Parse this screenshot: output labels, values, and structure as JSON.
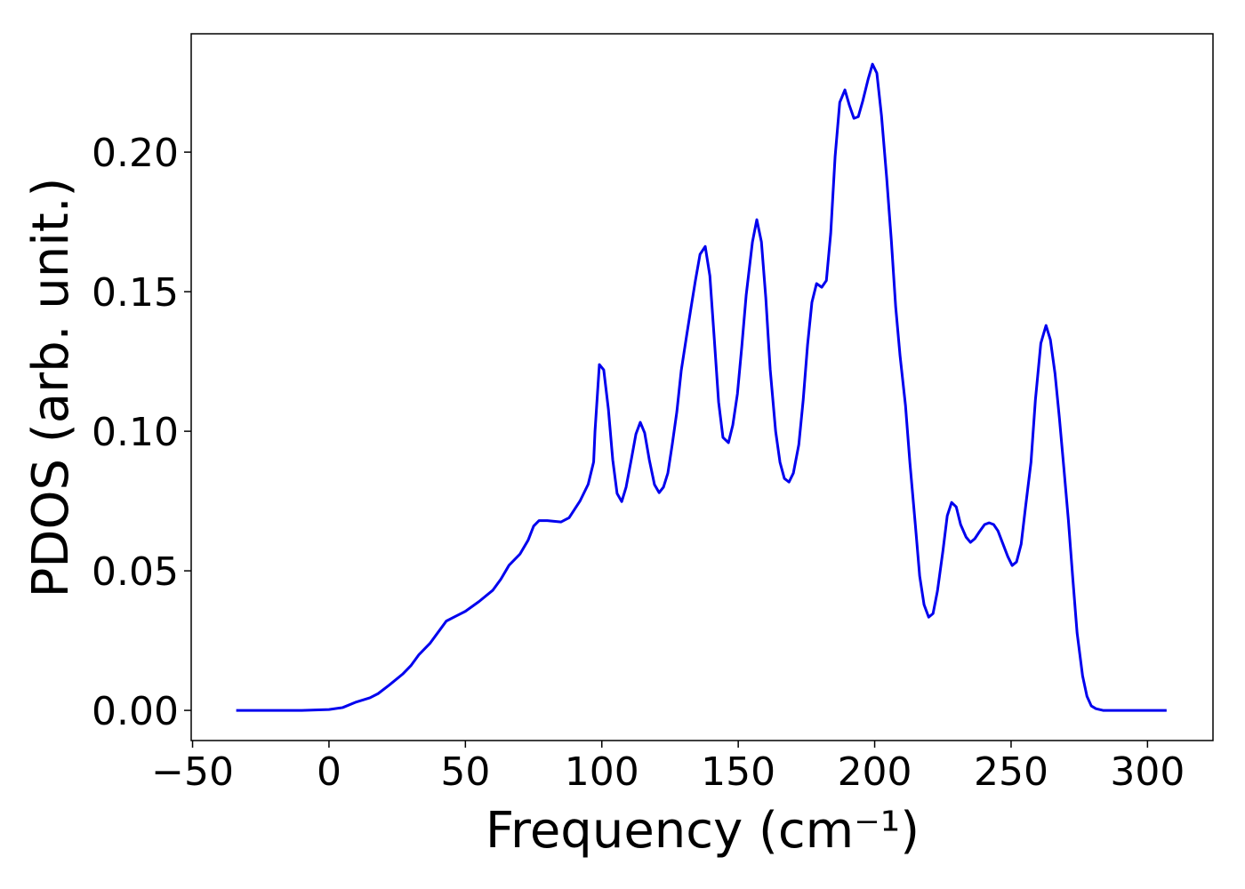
{
  "chart_data": {
    "type": "line",
    "xlabel": "Frequency (cm⁻¹)",
    "ylabel": "PDOS (arb. unit.)",
    "xlim": [
      -50.5,
      324
    ],
    "ylim": [
      -0.0108,
      0.2424
    ],
    "xticks": [
      {
        "value": -50,
        "label": "−50"
      },
      0,
      50,
      100,
      150,
      200,
      250,
      300
    ],
    "yticks": [
      {
        "value": 0,
        "label": "0.00"
      },
      {
        "value": 0.05,
        "label": "0.05"
      },
      {
        "value": 0.1,
        "label": "0.10"
      },
      {
        "value": 0.15,
        "label": "0.15"
      },
      {
        "value": 0.2,
        "label": "0.20"
      }
    ],
    "series": [
      {
        "color": "#0000ee",
        "x": [
          -34,
          -10,
          0,
          5,
          10,
          15,
          18,
          22,
          27,
          30,
          33,
          37,
          40,
          43,
          47,
          50,
          55,
          60,
          63,
          66,
          70,
          73,
          75,
          77,
          80,
          85,
          88,
          92,
          95,
          97,
          97.5,
          99.1,
          100.7,
          102.4,
          104,
          105.6,
          107.3,
          108.9,
          110.9,
          112.5,
          114.1,
          115.7,
          117.4,
          119.3,
          121,
          122.6,
          124.2,
          125.8,
          127.5,
          129.1,
          131.1,
          132.7,
          134.3,
          136,
          137.9,
          139.6,
          141.2,
          142.8,
          144.4,
          146.4,
          148,
          149.7,
          151.3,
          152.9,
          155.2,
          156.8,
          158.5,
          160.1,
          161.7,
          163.7,
          165.3,
          166.9,
          168.6,
          170.2,
          172.2,
          173.8,
          175.4,
          177,
          178.7,
          180.6,
          182.3,
          183.9,
          185.5,
          187.2,
          189.1,
          190.7,
          192.4,
          194,
          195.6,
          197.6,
          199.2,
          200.8,
          202.5,
          204.4,
          206.1,
          207.7,
          209.3,
          211.3,
          212.9,
          214.9,
          216.5,
          218.1,
          219.8,
          221.4,
          223,
          225,
          226.6,
          228.2,
          229.9,
          231.5,
          233.5,
          235.1,
          236.7,
          238.4,
          240.3,
          242,
          243.6,
          245.2,
          246.8,
          248.8,
          250.4,
          252,
          253.7,
          255.3,
          257.3,
          258.9,
          260.9,
          262.8,
          264.4,
          266.1,
          267.7,
          269.3,
          271,
          272.6,
          274.2,
          276.2,
          277.8,
          279.4,
          281.1,
          283.7,
          307
        ],
        "values": [
          0,
          0,
          0.0003,
          0.001,
          0.003,
          0.0045,
          0.006,
          0.009,
          0.013,
          0.016,
          0.02,
          0.024,
          0.028,
          0.032,
          0.034,
          0.0355,
          0.039,
          0.043,
          0.047,
          0.052,
          0.056,
          0.061,
          0.066,
          0.068,
          0.068,
          0.0675,
          0.069,
          0.075,
          0.081,
          0.089,
          0.1,
          0.1239,
          0.122,
          0.108,
          0.0898,
          0.0777,
          0.0748,
          0.08,
          0.0904,
          0.099,
          0.1032,
          0.0994,
          0.0898,
          0.0809,
          0.078,
          0.08,
          0.085,
          0.0952,
          0.107,
          0.1217,
          0.1344,
          0.1443,
          0.154,
          0.1634,
          0.1662,
          0.1557,
          0.1334,
          0.1105,
          0.0978,
          0.0959,
          0.1022,
          0.1134,
          0.1303,
          0.1487,
          0.1678,
          0.1758,
          0.1678,
          0.1478,
          0.1223,
          0.1,
          0.0889,
          0.0831,
          0.0818,
          0.085,
          0.0952,
          0.1111,
          0.1309,
          0.1462,
          0.1529,
          0.1516,
          0.154,
          0.171,
          0.1984,
          0.2178,
          0.2223,
          0.2169,
          0.2121,
          0.2127,
          0.2182,
          0.2261,
          0.2315,
          0.2283,
          0.2131,
          0.1908,
          0.1685,
          0.1446,
          0.1271,
          0.1092,
          0.0889,
          0.0666,
          0.0481,
          0.0379,
          0.0334,
          0.0347,
          0.0427,
          0.057,
          0.0697,
          0.0745,
          0.0729,
          0.0666,
          0.0621,
          0.0602,
          0.0615,
          0.064,
          0.0666,
          0.0672,
          0.0666,
          0.0643,
          0.0602,
          0.0551,
          0.0519,
          0.0532,
          0.0596,
          0.0729,
          0.0889,
          0.1111,
          0.1315,
          0.1379,
          0.1328,
          0.1207,
          0.1048,
          0.0873,
          0.0682,
          0.0475,
          0.0277,
          0.0124,
          0.0051,
          0.0016,
          0.0006,
          0,
          0
        ]
      }
    ]
  }
}
